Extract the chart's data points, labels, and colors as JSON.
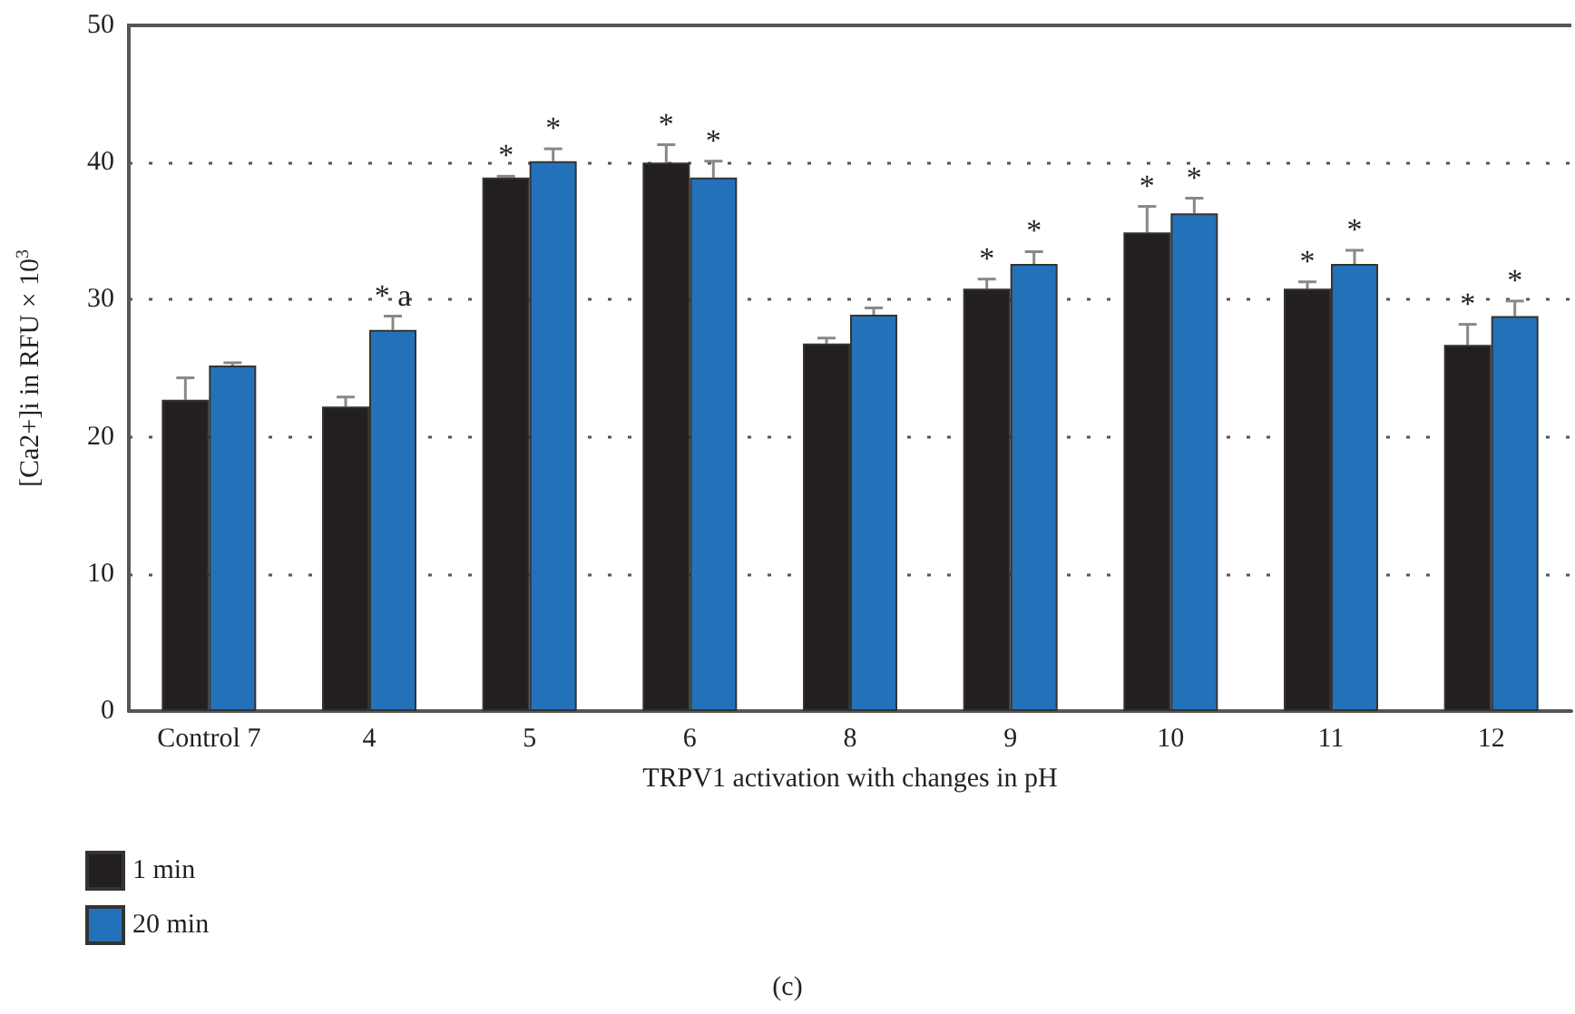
{
  "chart_data": {
    "type": "bar",
    "xlabel": "TRPV1 activation with changes in pH",
    "ylabel": "[Ca2+]i in RFU × 10$^{3}$",
    "categories": [
      "Control 7",
      "4",
      "5",
      "6",
      "8",
      "9",
      "10",
      "11",
      "12"
    ],
    "series": [
      {
        "name": "1 min",
        "color": "#231f20",
        "values": [
          22.7,
          22.2,
          38.9,
          40.0,
          26.8,
          30.8,
          34.9,
          30.8,
          26.7
        ],
        "errors": [
          1.6,
          0.7,
          0.1,
          1.3,
          0.4,
          0.7,
          1.9,
          0.5,
          1.5
        ]
      },
      {
        "name": "20 min",
        "color": "#2372b9",
        "values": [
          25.2,
          27.8,
          40.1,
          38.9,
          28.9,
          32.6,
          36.3,
          32.6,
          28.8
        ],
        "errors": [
          0.2,
          1.0,
          0.9,
          1.2,
          0.5,
          0.9,
          1.1,
          1.0,
          1.1
        ]
      }
    ],
    "ylim": [
      0,
      50
    ],
    "yticks": [
      0,
      10,
      20,
      30,
      40,
      50
    ],
    "grid": "y",
    "legend": "bottom left",
    "annotations": [
      {
        "text": "* a",
        "x": "4",
        "y": 27.8
      },
      {
        "text": "*",
        "x": "5",
        "y": 38.9
      },
      {
        "text": "*",
        "x": "5",
        "y": 40.1
      },
      {
        "text": "*",
        "x": "6",
        "y": 40.0
      },
      {
        "text": "*",
        "x": "6",
        "y": 38.9
      },
      {
        "text": "*",
        "x": "9",
        "y": 30.8
      },
      {
        "text": "*",
        "x": "9",
        "y": 32.6
      },
      {
        "text": "*",
        "x": "10",
        "y": 34.9
      },
      {
        "text": "*",
        "x": "10",
        "y": 36.3
      },
      {
        "text": "*",
        "x": "11",
        "y": 30.8
      },
      {
        "text": "*",
        "x": "11",
        "y": 32.6
      },
      {
        "text": "*",
        "x": "12",
        "y": 26.7
      },
      {
        "text": "*",
        "x": "12",
        "y": 28.8
      },
      "(c)"
    ]
  }
}
